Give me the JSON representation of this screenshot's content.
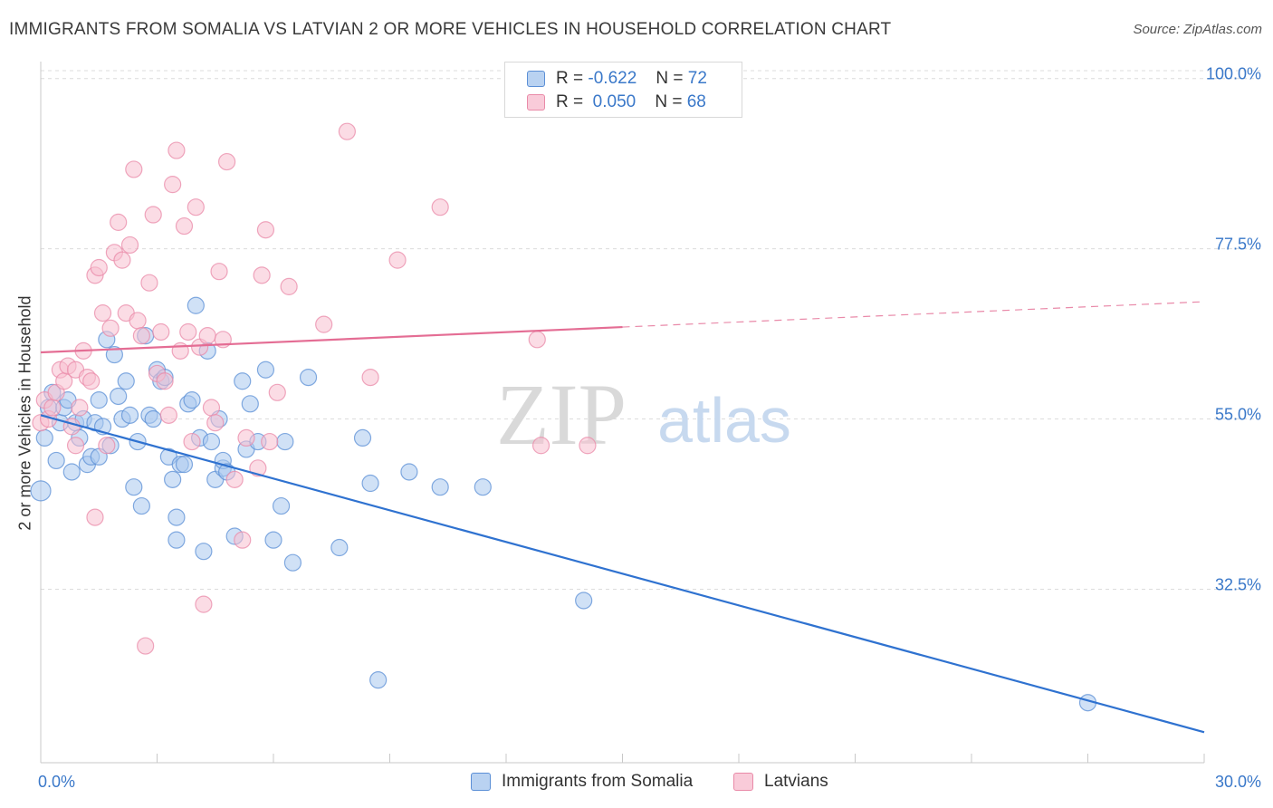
{
  "header": {
    "title": "IMMIGRANTS FROM SOMALIA VS LATVIAN 2 OR MORE VEHICLES IN HOUSEHOLD CORRELATION CHART",
    "source": "Source: ZipAtlas.com"
  },
  "legend": {
    "rows": [
      {
        "r_label": "R =",
        "r_value": "-0.622",
        "n_label": "N =",
        "n_value": "72"
      },
      {
        "r_label": "R =",
        "r_value": "0.050",
        "n_label": "N =",
        "n_value": "68"
      }
    ]
  },
  "watermark": {
    "zip": "ZIP",
    "atlas": "atlas"
  },
  "colors": {
    "somalia_fill": "#a9c8ee",
    "somalia_stroke": "#5b8fd6",
    "somalia_line": "#2f72d0",
    "latvian_fill": "#f7bfd0",
    "latvian_stroke": "#e98aa8",
    "latvian_line": "#e46d94",
    "tick_label": "#3a78c9",
    "grid": "#dcdcdc"
  },
  "chart_data": {
    "type": "scatter",
    "title": "IMMIGRANTS FROM SOMALIA VS LATVIAN 2 OR MORE VEHICLES IN HOUSEHOLD CORRELATION CHART",
    "xlabel": "",
    "ylabel": "2 or more Vehicles in Household",
    "xlim": [
      0,
      30
    ],
    "ylim": [
      11,
      102
    ],
    "x_tick_labels": [
      "0.0%",
      "30.0%"
    ],
    "y_ticks": [
      32.5,
      55.0,
      77.5,
      100.0
    ],
    "y_tick_labels": [
      "32.5%",
      "55.0%",
      "77.5%",
      "100.0%"
    ],
    "grid": true,
    "legend_position": "top-center",
    "series": [
      {
        "name": "Immigrants from Somalia",
        "r": -0.622,
        "n": 72,
        "trend": {
          "x": [
            0,
            30
          ],
          "y": [
            55.5,
            13.6
          ],
          "dashed_from": null
        },
        "points": [
          [
            0.0,
            45.5
          ],
          [
            0.1,
            52.5
          ],
          [
            0.2,
            56.5
          ],
          [
            0.3,
            58.5
          ],
          [
            0.4,
            49.5
          ],
          [
            0.5,
            54.5
          ],
          [
            0.6,
            56.5
          ],
          [
            0.7,
            57.5
          ],
          [
            0.8,
            48.0
          ],
          [
            0.9,
            54.5
          ],
          [
            1.0,
            52.5
          ],
          [
            1.1,
            55.0
          ],
          [
            1.2,
            49.0
          ],
          [
            1.3,
            50.0
          ],
          [
            1.4,
            54.5
          ],
          [
            1.5,
            57.5
          ],
          [
            1.6,
            54.0
          ],
          [
            1.7,
            65.5
          ],
          [
            1.8,
            51.5
          ],
          [
            1.9,
            63.5
          ],
          [
            2.0,
            58.0
          ],
          [
            2.1,
            55.0
          ],
          [
            2.2,
            60.0
          ],
          [
            2.3,
            55.5
          ],
          [
            2.4,
            46.0
          ],
          [
            2.5,
            52.0
          ],
          [
            2.6,
            43.5
          ],
          [
            2.7,
            66.0
          ],
          [
            2.8,
            55.5
          ],
          [
            2.9,
            55.0
          ],
          [
            3.0,
            61.5
          ],
          [
            3.1,
            60.0
          ],
          [
            3.2,
            60.5
          ],
          [
            3.3,
            50.0
          ],
          [
            3.4,
            47.0
          ],
          [
            3.5,
            42.0
          ],
          [
            3.5,
            39.0
          ],
          [
            3.6,
            49.0
          ],
          [
            3.7,
            49.0
          ],
          [
            3.8,
            57.0
          ],
          [
            3.9,
            57.5
          ],
          [
            4.0,
            70.0
          ],
          [
            4.1,
            52.5
          ],
          [
            4.2,
            37.5
          ],
          [
            4.3,
            64.0
          ],
          [
            4.4,
            52.0
          ],
          [
            4.5,
            47.0
          ],
          [
            4.6,
            55.0
          ],
          [
            4.7,
            48.5
          ],
          [
            4.7,
            49.5
          ],
          [
            4.8,
            48.0
          ],
          [
            5.0,
            39.5
          ],
          [
            5.2,
            60.0
          ],
          [
            5.3,
            51.0
          ],
          [
            5.6,
            52.0
          ],
          [
            6.0,
            39.0
          ],
          [
            5.4,
            57.0
          ],
          [
            5.8,
            61.5
          ],
          [
            6.3,
            52.0
          ],
          [
            6.5,
            36.0
          ],
          [
            6.9,
            60.5
          ],
          [
            8.5,
            46.5
          ],
          [
            6.2,
            43.5
          ],
          [
            8.3,
            52.5
          ],
          [
            7.7,
            38.0
          ],
          [
            9.5,
            48.0
          ],
          [
            10.3,
            46.0
          ],
          [
            11.4,
            46.0
          ],
          [
            14.0,
            31.0
          ],
          [
            8.7,
            20.5
          ],
          [
            27.0,
            17.5
          ],
          [
            1.5,
            50.0
          ]
        ]
      },
      {
        "name": "Latvians",
        "r": 0.05,
        "n": 68,
        "trend": {
          "x": [
            0,
            30
          ],
          "y": [
            63.8,
            70.5
          ],
          "dashed_from": 15
        },
        "points": [
          [
            0.0,
            54.5
          ],
          [
            0.1,
            57.5
          ],
          [
            0.2,
            55.0
          ],
          [
            0.3,
            56.5
          ],
          [
            0.4,
            58.5
          ],
          [
            0.5,
            61.5
          ],
          [
            0.6,
            60.0
          ],
          [
            0.7,
            62.0
          ],
          [
            0.8,
            54.0
          ],
          [
            0.9,
            61.5
          ],
          [
            1.0,
            56.5
          ],
          [
            1.1,
            64.0
          ],
          [
            1.2,
            60.5
          ],
          [
            1.3,
            60.0
          ],
          [
            1.4,
            74.0
          ],
          [
            1.5,
            75.0
          ],
          [
            1.6,
            69.0
          ],
          [
            1.7,
            51.5
          ],
          [
            1.8,
            67.0
          ],
          [
            1.9,
            77.0
          ],
          [
            2.0,
            81.0
          ],
          [
            2.1,
            76.0
          ],
          [
            2.2,
            69.0
          ],
          [
            2.3,
            78.0
          ],
          [
            2.4,
            88.0
          ],
          [
            2.5,
            68.0
          ],
          [
            2.6,
            66.0
          ],
          [
            2.7,
            25.0
          ],
          [
            2.8,
            73.0
          ],
          [
            2.9,
            82.0
          ],
          [
            3.0,
            61.0
          ],
          [
            3.1,
            66.5
          ],
          [
            3.2,
            60.0
          ],
          [
            3.3,
            55.5
          ],
          [
            3.4,
            86.0
          ],
          [
            3.5,
            90.5
          ],
          [
            3.6,
            64.0
          ],
          [
            3.7,
            80.5
          ],
          [
            3.8,
            66.5
          ],
          [
            3.9,
            52.0
          ],
          [
            4.0,
            83.0
          ],
          [
            4.1,
            64.5
          ],
          [
            4.2,
            30.5
          ],
          [
            4.3,
            66.0
          ],
          [
            4.4,
            56.5
          ],
          [
            4.5,
            54.5
          ],
          [
            4.6,
            74.5
          ],
          [
            4.7,
            65.5
          ],
          [
            4.8,
            89.0
          ],
          [
            5.0,
            47.0
          ],
          [
            5.2,
            39.0
          ],
          [
            5.3,
            52.5
          ],
          [
            5.6,
            48.5
          ],
          [
            5.7,
            74.0
          ],
          [
            5.8,
            80.0
          ],
          [
            5.9,
            52.0
          ],
          [
            6.1,
            58.5
          ],
          [
            6.4,
            72.5
          ],
          [
            7.3,
            67.5
          ],
          [
            7.9,
            93.0
          ],
          [
            8.5,
            60.5
          ],
          [
            9.2,
            76.0
          ],
          [
            10.3,
            83.0
          ],
          [
            12.8,
            65.5
          ],
          [
            12.9,
            51.5
          ],
          [
            14.1,
            51.5
          ],
          [
            1.4,
            42.0
          ],
          [
            0.9,
            51.5
          ]
        ]
      }
    ]
  },
  "bottom_legend": [
    {
      "label": "Immigrants from Somalia"
    },
    {
      "label": "Latvians"
    }
  ]
}
